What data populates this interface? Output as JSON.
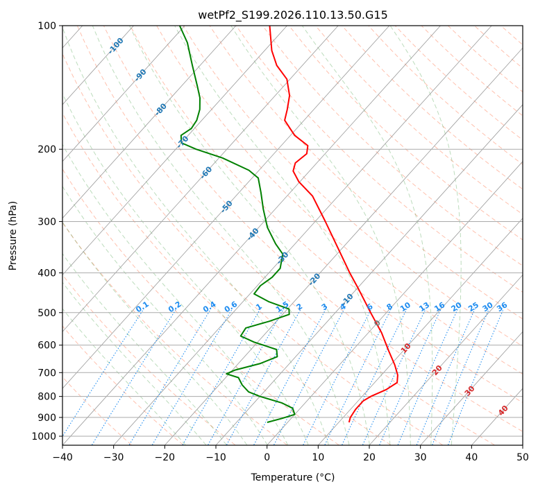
{
  "chart_data": {
    "type": "line",
    "title": "wetPf2_S199.2026.110.13.50.G15",
    "xlabel": "Temperature (°C)",
    "ylabel": "Pressure (hPa)",
    "xlim": [
      -40,
      50
    ],
    "ylim": [
      1050,
      100
    ],
    "y_scale": "log",
    "skew": "skew-T log-P",
    "grid": true,
    "x_ticks": [
      "−40",
      "−30",
      "−20",
      "−10",
      "0",
      "10",
      "20",
      "30",
      "40",
      "50"
    ],
    "y_ticks": [
      "100",
      "200",
      "300",
      "400",
      "500",
      "600",
      "700",
      "800",
      "900",
      "1000"
    ],
    "series": [
      {
        "color": "#ff0000",
        "points": [
          {
            "p": 925,
            "t": 12.0
          },
          {
            "p": 900,
            "t": 11.4
          },
          {
            "p": 860,
            "t": 11.0
          },
          {
            "p": 820,
            "t": 11.0
          },
          {
            "p": 800,
            "t": 11.7
          },
          {
            "p": 770,
            "t": 13.5
          },
          {
            "p": 740,
            "t": 14.4
          },
          {
            "p": 710,
            "t": 13.2
          },
          {
            "p": 670,
            "t": 10.8
          },
          {
            "p": 620,
            "t": 7.2
          },
          {
            "p": 560,
            "t": 2.6
          },
          {
            "p": 500,
            "t": -3.1
          },
          {
            "p": 440,
            "t": -9.4
          },
          {
            "p": 400,
            "t": -14.2
          },
          {
            "p": 350,
            "t": -20.6
          },
          {
            "p": 300,
            "t": -28.0
          },
          {
            "p": 260,
            "t": -35.0
          },
          {
            "p": 240,
            "t": -40.2
          },
          {
            "p": 226,
            "t": -43.2
          },
          {
            "p": 216,
            "t": -44.2
          },
          {
            "p": 205,
            "t": -43.6
          },
          {
            "p": 196,
            "t": -44.8
          },
          {
            "p": 185,
            "t": -49.2
          },
          {
            "p": 170,
            "t": -53.8
          },
          {
            "p": 160,
            "t": -55.2
          },
          {
            "p": 148,
            "t": -57.2
          },
          {
            "p": 135,
            "t": -60.6
          },
          {
            "p": 125,
            "t": -65.0
          },
          {
            "p": 115,
            "t": -68.6
          },
          {
            "p": 100,
            "t": -73.4
          }
        ]
      },
      {
        "color": "#008000",
        "points": [
          {
            "p": 925,
            "t": -4.0
          },
          {
            "p": 905,
            "t": -1.8
          },
          {
            "p": 885,
            "t": 0.0
          },
          {
            "p": 855,
            "t": -1.5
          },
          {
            "p": 830,
            "t": -4.5
          },
          {
            "p": 800,
            "t": -10.0
          },
          {
            "p": 780,
            "t": -13.0
          },
          {
            "p": 750,
            "t": -15.5
          },
          {
            "p": 720,
            "t": -17.5
          },
          {
            "p": 705,
            "t": -20.5
          },
          {
            "p": 690,
            "t": -19.5
          },
          {
            "p": 665,
            "t": -15.7
          },
          {
            "p": 640,
            "t": -13.6
          },
          {
            "p": 615,
            "t": -15.0
          },
          {
            "p": 590,
            "t": -20.7
          },
          {
            "p": 570,
            "t": -24.4
          },
          {
            "p": 545,
            "t": -24.8
          },
          {
            "p": 525,
            "t": -21.4
          },
          {
            "p": 505,
            "t": -18.7
          },
          {
            "p": 490,
            "t": -19.7
          },
          {
            "p": 470,
            "t": -25.0
          },
          {
            "p": 450,
            "t": -29.2
          },
          {
            "p": 430,
            "t": -29.4
          },
          {
            "p": 410,
            "t": -28.6
          },
          {
            "p": 390,
            "t": -28.6
          },
          {
            "p": 360,
            "t": -30.6
          },
          {
            "p": 340,
            "t": -33.8
          },
          {
            "p": 310,
            "t": -38.3
          },
          {
            "p": 280,
            "t": -42.3
          },
          {
            "p": 255,
            "t": -45.7
          },
          {
            "p": 235,
            "t": -48.8
          },
          {
            "p": 225,
            "t": -52.0
          },
          {
            "p": 210,
            "t": -59.3
          },
          {
            "p": 200,
            "t": -66.0
          },
          {
            "p": 193,
            "t": -70.0
          },
          {
            "p": 185,
            "t": -71.4
          },
          {
            "p": 178,
            "t": -70.6
          },
          {
            "p": 170,
            "t": -71.0
          },
          {
            "p": 160,
            "t": -72.3
          },
          {
            "p": 150,
            "t": -74.3
          },
          {
            "p": 140,
            "t": -77.0
          },
          {
            "p": 125,
            "t": -81.5
          },
          {
            "p": 110,
            "t": -86.5
          },
          {
            "p": 100,
            "t": -91.0
          }
        ]
      }
    ],
    "isotherm_labels": [
      {
        "text": "-100",
        "t": -100,
        "p": 112
      },
      {
        "text": "-90",
        "t": -90,
        "p": 132
      },
      {
        "text": "-80",
        "t": -80,
        "p": 160
      },
      {
        "text": "-70",
        "t": -70,
        "p": 192
      },
      {
        "text": "-60",
        "t": -60,
        "p": 228
      },
      {
        "text": "-50",
        "t": -50,
        "p": 276
      },
      {
        "text": "-40",
        "t": -40,
        "p": 322
      },
      {
        "text": "-30",
        "t": -30,
        "p": 368
      },
      {
        "text": "-20",
        "t": -20,
        "p": 415
      },
      {
        "text": "-10",
        "t": -10,
        "p": 465
      },
      {
        "text": "0",
        "t": 0,
        "p": 530
      },
      {
        "text": "10",
        "t": 10,
        "p": 610
      },
      {
        "text": "20",
        "t": 20,
        "p": 690
      },
      {
        "text": "30",
        "t": 30,
        "p": 775
      },
      {
        "text": "40",
        "t": 40,
        "p": 865
      }
    ],
    "mixing_ratio_labels": [
      "0.1",
      "0.2",
      "0.4",
      "0.6",
      "1",
      "1.5",
      "2",
      "3",
      "4",
      "6",
      "8",
      "10",
      "13",
      "16",
      "20",
      "25",
      "30",
      "36"
    ],
    "mixing_ratio_values": [
      0.1,
      0.2,
      0.4,
      0.6,
      1,
      1.5,
      2,
      3,
      4,
      6,
      8,
      10,
      13,
      16,
      20,
      25,
      30,
      36
    ],
    "mixing_ratio_label_pressure": 485,
    "colors": {
      "temperature": "#ff0000",
      "dewpoint": "#008000",
      "isotherm": "#999999",
      "isobar": "#aaaaaa",
      "dry_adiabat": "#ff8c69",
      "moist_adiabat": "#228b22",
      "mixing_ratio": "#1e8cf0",
      "isotherm_label_cold": "#1f77b4",
      "isotherm_label_zero": "#777777",
      "isotherm_label_warm": "#d62728",
      "special_line": "#d2b48c"
    }
  }
}
